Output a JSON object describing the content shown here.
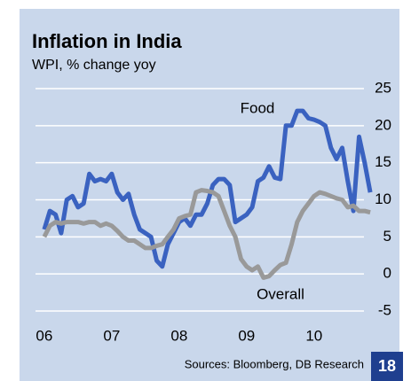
{
  "chart_data": {
    "type": "line",
    "title": "Inflation in India",
    "subtitle": "WPI, % change yoy",
    "source": "Sources: Bloomberg, DB Research",
    "page_number": "18",
    "x": [
      2006.0,
      2006.083,
      2006.167,
      2006.25,
      2006.333,
      2006.417,
      2006.5,
      2006.583,
      2006.667,
      2006.75,
      2006.833,
      2006.917,
      2007.0,
      2007.083,
      2007.167,
      2007.25,
      2007.333,
      2007.417,
      2007.5,
      2007.583,
      2007.667,
      2007.75,
      2007.833,
      2007.917,
      2008.0,
      2008.083,
      2008.167,
      2008.25,
      2008.333,
      2008.417,
      2008.5,
      2008.583,
      2008.667,
      2008.75,
      2008.833,
      2008.917,
      2009.0,
      2009.083,
      2009.167,
      2009.25,
      2009.333,
      2009.417,
      2009.5,
      2009.583,
      2009.667,
      2009.75,
      2009.833,
      2009.917,
      2010.0,
      2010.083,
      2010.167,
      2010.25,
      2010.333,
      2010.417,
      2010.5,
      2010.583,
      2010.667,
      2010.75,
      2010.833
    ],
    "series": [
      {
        "name": "Food",
        "color": "#3a62c0",
        "values": [
          6,
          8.5,
          8,
          5.5,
          10,
          10.5,
          9,
          9.5,
          13.5,
          12.5,
          12.8,
          12.5,
          13.5,
          11,
          10,
          10.8,
          8,
          6,
          5.5,
          5,
          1.8,
          1,
          4,
          5.5,
          7,
          7.5,
          6.5,
          8,
          8,
          9.5,
          12,
          12.8,
          12.8,
          12,
          7,
          7.5,
          8,
          9,
          12.5,
          13,
          14.5,
          13,
          12.8,
          20,
          20,
          22,
          22,
          21,
          20.8,
          20.5,
          20,
          17,
          15.5,
          17,
          12.5,
          8.5,
          18.5,
          15,
          11
        ]
      },
      {
        "name": "Overall",
        "color": "#999999",
        "values": [
          5,
          6.5,
          7,
          6.8,
          7,
          7,
          7,
          6.8,
          7,
          7,
          6.5,
          6.8,
          6.5,
          5.8,
          5,
          4.5,
          4.5,
          4,
          3.5,
          3.5,
          3.8,
          4,
          5,
          6,
          7.5,
          7.8,
          8,
          11,
          11.3,
          11.2,
          11,
          10.5,
          8.5,
          6.5,
          5,
          2,
          1,
          0.5,
          1,
          -0.5,
          -0.3,
          0.5,
          1.2,
          1.5,
          4,
          7,
          8.5,
          9.5,
          10.5,
          11,
          10.8,
          10.5,
          10.2,
          10,
          9,
          9.2,
          8.5,
          8.5,
          8.3
        ]
      }
    ],
    "xlim": [
      2005.87,
      2010.74
    ],
    "xticks": [
      {
        "value": 2006,
        "label": "06"
      },
      {
        "value": 2007,
        "label": "07"
      },
      {
        "value": 2008,
        "label": "08"
      },
      {
        "value": 2009,
        "label": "09"
      },
      {
        "value": 2010,
        "label": "10"
      }
    ],
    "ylim": [
      -5,
      25
    ],
    "yticks": [
      25,
      20,
      15,
      10,
      5,
      0,
      -5
    ],
    "grid": true
  }
}
